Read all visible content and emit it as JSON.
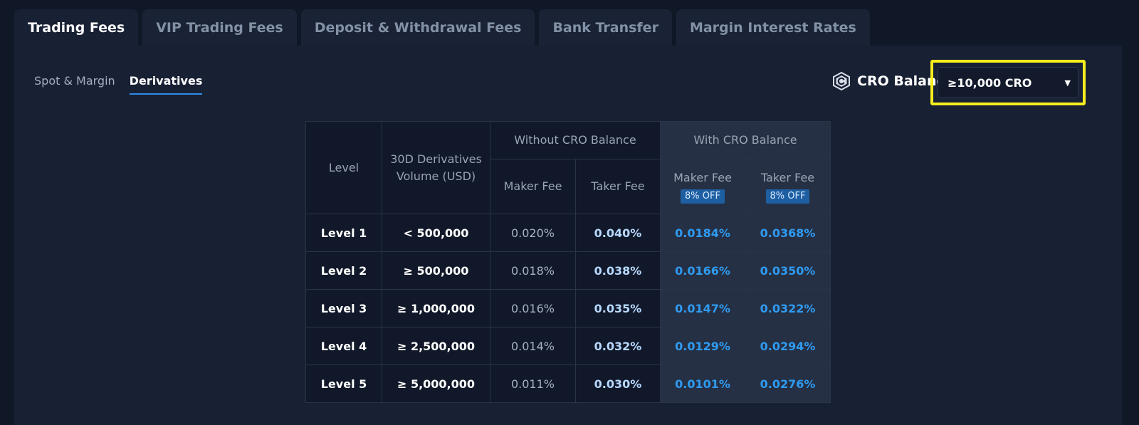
{
  "tabs": [
    {
      "label": "Trading Fees",
      "active": true
    },
    {
      "label": "VIP Trading Fees",
      "active": false
    },
    {
      "label": "Deposit & Withdrawal Fees",
      "active": false
    },
    {
      "label": "Bank Transfer",
      "active": false
    },
    {
      "label": "Margin Interest Rates",
      "active": false
    }
  ],
  "subtabs": [
    {
      "label": "Spot & Margin",
      "active": false
    },
    {
      "label": "Derivatives",
      "active": true
    }
  ],
  "cro_balance": {
    "label": "CRO Balance",
    "icon": "cro-coin-icon",
    "selected": "≥10,000 CRO"
  },
  "table": {
    "headers": {
      "level": "Level",
      "volume": "30D Derivatives Volume (USD)",
      "without_group": "Without CRO Balance",
      "with_group": "With CRO Balance",
      "maker": "Maker Fee",
      "taker": "Taker Fee",
      "discount": "8% OFF"
    },
    "rows": [
      {
        "level": "Level 1",
        "volume": "< 500,000",
        "maker": "0.020%",
        "taker": "0.040%",
        "cro_maker": "0.0184%",
        "cro_taker": "0.0368%"
      },
      {
        "level": "Level 2",
        "volume": "≥ 500,000",
        "maker": "0.018%",
        "taker": "0.038%",
        "cro_maker": "0.0166%",
        "cro_taker": "0.0350%"
      },
      {
        "level": "Level 3",
        "volume": "≥ 1,000,000",
        "maker": "0.016%",
        "taker": "0.035%",
        "cro_maker": "0.0147%",
        "cro_taker": "0.0322%"
      },
      {
        "level": "Level 4",
        "volume": "≥ 2,500,000",
        "maker": "0.014%",
        "taker": "0.032%",
        "cro_maker": "0.0129%",
        "cro_taker": "0.0294%"
      },
      {
        "level": "Level 5",
        "volume": "≥ 5,000,000",
        "maker": "0.011%",
        "taker": "0.030%",
        "cro_maker": "0.0101%",
        "cro_taker": "0.0276%"
      }
    ]
  },
  "colors": {
    "background": "#101727",
    "panel": "#182034",
    "accent": "#2f9bf2",
    "highlight_border": "#f5ed1d"
  }
}
